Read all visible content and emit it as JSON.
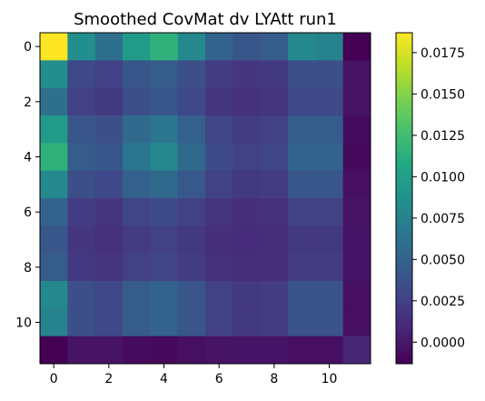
{
  "chart_data": {
    "type": "heatmap",
    "title": "Smoothed CovMat dv LYAtt run1",
    "xlabel": "",
    "ylabel": "",
    "x_ticks": [
      "0",
      "2",
      "4",
      "6",
      "8",
      "10"
    ],
    "y_ticks": [
      "0",
      "2",
      "4",
      "6",
      "8",
      "10"
    ],
    "rows": 12,
    "cols": 12,
    "colorbar": {
      "colormap": "viridis",
      "vmin": -0.0013,
      "vmax": 0.0187,
      "ticks": [
        "0.0000",
        "0.0025",
        "0.0050",
        "0.0075",
        "0.0100",
        "0.0125",
        "0.0150",
        "0.0175"
      ],
      "tick_values": [
        0.0,
        0.0025,
        0.005,
        0.0075,
        0.01,
        0.0125,
        0.015,
        0.0175
      ]
    },
    "values": [
      [
        0.0187,
        0.0085,
        0.006,
        0.0095,
        0.0115,
        0.008,
        0.005,
        0.004,
        0.0045,
        0.008,
        0.0075,
        -0.0013
      ],
      [
        0.0085,
        0.003,
        0.0025,
        0.004,
        0.0045,
        0.0035,
        0.0022,
        0.0018,
        0.002,
        0.0035,
        0.0035,
        -0.0003
      ],
      [
        0.006,
        0.0025,
        0.002,
        0.0035,
        0.004,
        0.003,
        0.0018,
        0.0015,
        0.0017,
        0.003,
        0.003,
        -0.0003
      ],
      [
        0.0095,
        0.004,
        0.0035,
        0.0055,
        0.0065,
        0.0048,
        0.0028,
        0.0022,
        0.0025,
        0.0045,
        0.0045,
        -0.0007
      ],
      [
        0.0115,
        0.0045,
        0.004,
        0.0065,
        0.008,
        0.0055,
        0.0032,
        0.0025,
        0.0028,
        0.005,
        0.005,
        -0.0008
      ],
      [
        0.008,
        0.0035,
        0.003,
        0.0048,
        0.0055,
        0.0042,
        0.0025,
        0.002,
        0.0022,
        0.004,
        0.004,
        -0.0005
      ],
      [
        0.005,
        0.0022,
        0.0018,
        0.0028,
        0.0032,
        0.0025,
        0.0017,
        0.0014,
        0.0015,
        0.0025,
        0.0025,
        -0.0003
      ],
      [
        0.004,
        0.0018,
        0.0015,
        0.0022,
        0.0025,
        0.002,
        0.0014,
        0.0012,
        0.0013,
        0.002,
        0.002,
        -0.0002
      ],
      [
        0.0045,
        0.002,
        0.0017,
        0.0025,
        0.0028,
        0.0022,
        0.0015,
        0.0013,
        0.0014,
        0.0022,
        0.0022,
        -0.0002
      ],
      [
        0.008,
        0.0035,
        0.003,
        0.0045,
        0.005,
        0.004,
        0.0025,
        0.002,
        0.0022,
        0.0038,
        0.0038,
        -0.0005
      ],
      [
        0.0075,
        0.0035,
        0.003,
        0.0045,
        0.005,
        0.004,
        0.0025,
        0.002,
        0.0022,
        0.0038,
        0.0038,
        -0.0005
      ],
      [
        -0.0013,
        -0.0003,
        -0.0003,
        -0.0007,
        -0.0008,
        -0.0005,
        -0.0003,
        -0.0002,
        -0.0002,
        -0.0005,
        -0.0005,
        0.0008
      ]
    ]
  }
}
